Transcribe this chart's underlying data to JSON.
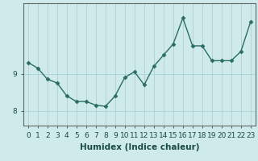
{
  "x": [
    0,
    1,
    2,
    3,
    4,
    5,
    6,
    7,
    8,
    9,
    10,
    11,
    12,
    13,
    14,
    15,
    16,
    17,
    18,
    19,
    20,
    21,
    22,
    23
  ],
  "y": [
    9.3,
    9.15,
    8.85,
    8.75,
    8.4,
    8.25,
    8.25,
    8.15,
    8.12,
    8.4,
    8.9,
    9.05,
    8.7,
    9.2,
    9.5,
    9.8,
    10.5,
    9.75,
    9.75,
    9.35,
    9.35,
    9.35,
    9.6,
    10.4
  ],
  "line_color": "#2a6e63",
  "marker": "D",
  "markersize": 2.5,
  "linewidth": 1.0,
  "bg_color": "#ceeaea",
  "grid_color": "#a8d4d4",
  "xlabel": "Humidex (Indice chaleur)",
  "yticks": [
    8,
    9
  ],
  "yticklabels": [
    "8",
    "9"
  ],
  "xticks": [
    0,
    1,
    2,
    3,
    4,
    5,
    6,
    7,
    8,
    9,
    10,
    11,
    12,
    13,
    14,
    15,
    16,
    17,
    18,
    19,
    20,
    21,
    22,
    23
  ],
  "ylim": [
    7.6,
    10.9
  ],
  "xlim": [
    -0.5,
    23.5
  ],
  "xlabel_fontsize": 7.5,
  "tick_fontsize": 6.5,
  "spine_color": "#666666"
}
